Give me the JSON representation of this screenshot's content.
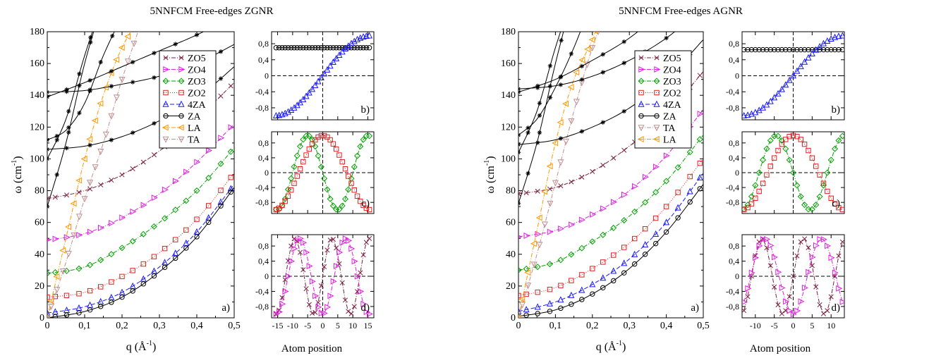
{
  "figure": {
    "left_title": "5NNFCM  Free-edges ZGNR",
    "right_title": "5NNFCM Free-edges AGNR",
    "omega_label": "ω (cm",
    "omega_exp": "-1",
    "omega_close": ")",
    "q_label": "q (Å",
    "q_exp": "-1",
    "q_close": ")",
    "atom_label": "Atom position"
  },
  "chart_data": [
    {
      "id": "zgnr_dispersion",
      "type": "line",
      "panel_label": "a)",
      "xlim": [
        0,
        0.5
      ],
      "ylim": [
        0,
        180
      ],
      "xticks": [
        0,
        0.1,
        0.2,
        0.3,
        0.4,
        0.5
      ],
      "xtick_labels": [
        "0",
        "0,1",
        "0,2",
        "0,3",
        "0,4",
        "0,5"
      ],
      "yticks": [
        0,
        20,
        40,
        60,
        80,
        100,
        120,
        140,
        160,
        180
      ],
      "legend_position": "top-right",
      "legend_order": [
        "ZO5",
        "ZO4",
        "ZO3",
        "ZO2",
        "4ZA",
        "ZA",
        "LA",
        "TA"
      ],
      "series": [
        {
          "name": "ZO5",
          "color": "#7a1f3d",
          "marker": "x",
          "dash": "6,2,1,2",
          "x": [
            0,
            0.1,
            0.2,
            0.3,
            0.4,
            0.5
          ],
          "values": [
            75,
            80,
            90,
            105,
            125,
            148
          ]
        },
        {
          "name": "ZO4",
          "color": "#e020e0",
          "marker": "tri-right",
          "dash": "6,2,1,2",
          "x": [
            0,
            0.1,
            0.2,
            0.3,
            0.4,
            0.5
          ],
          "values": [
            49,
            53,
            63,
            78,
            98,
            122
          ]
        },
        {
          "name": "ZO3",
          "color": "#00a000",
          "marker": "diamond",
          "dash": "6,2,1,2",
          "x": [
            0,
            0.1,
            0.2,
            0.3,
            0.4,
            0.5
          ],
          "values": [
            28,
            32,
            44,
            60,
            80,
            107
          ]
        },
        {
          "name": "ZO2",
          "color": "#e02020",
          "marker": "square",
          "dash": "1,2",
          "x": [
            0,
            0.1,
            0.2,
            0.3,
            0.4,
            0.5
          ],
          "values": [
            13,
            16,
            26,
            41,
            62,
            91
          ]
        },
        {
          "name": "4ZA",
          "color": "#1a1aff",
          "marker": "tri-up",
          "dash": "6,3",
          "x": [
            0,
            0.1,
            0.2,
            0.3,
            0.4,
            0.5
          ],
          "values": [
            3,
            7,
            16,
            32,
            54,
            84
          ]
        },
        {
          "name": "ZA",
          "color": "#000000",
          "marker": "circle",
          "dash": "",
          "x": [
            0,
            0.1,
            0.2,
            0.3,
            0.4,
            0.5
          ],
          "values": [
            0,
            4,
            13,
            29,
            51,
            82
          ]
        },
        {
          "name": "LA",
          "color": "#ff9900",
          "marker": "tri-left",
          "dash": "6,2,1,2",
          "x": [
            0,
            0.05,
            0.1,
            0.15,
            0.2,
            0.25
          ],
          "values": [
            0,
            50,
            100,
            140,
            170,
            190
          ]
        },
        {
          "name": "TA",
          "color": "#c09090",
          "marker": "tri-down",
          "dash": "6,2,1,2",
          "x": [
            0,
            0.05,
            0.1,
            0.15,
            0.2,
            0.25
          ],
          "values": [
            0,
            35,
            75,
            110,
            150,
            185
          ]
        },
        {
          "name": "",
          "color": "#000000",
          "marker": "star",
          "dash": "",
          "x": [
            0,
            0.1,
            0.2,
            0.3,
            0.4,
            0.5
          ],
          "values": [
            142,
            143,
            147,
            152,
            160,
            172
          ]
        },
        {
          "name": "",
          "color": "#000000",
          "marker": "star",
          "dash": "",
          "x": [
            0,
            0.1,
            0.2,
            0.3,
            0.4,
            0.5
          ],
          "values": [
            139,
            148,
            158,
            168,
            178,
            190
          ]
        },
        {
          "name": "",
          "color": "#000000",
          "marker": "star",
          "dash": "",
          "x": [
            0,
            0.05,
            0.1,
            0.15,
            0.2
          ],
          "values": [
            112,
            118,
            135,
            165,
            190
          ]
        },
        {
          "name": "",
          "color": "#000000",
          "marker": "star",
          "dash": "",
          "x": [
            0,
            0.1,
            0.2,
            0.3,
            0.4,
            0.5
          ],
          "values": [
            106,
            108,
            114,
            124,
            138,
            158
          ]
        },
        {
          "name": "",
          "color": "#000000",
          "marker": "star",
          "dash": "",
          "x": [
            0,
            0.05,
            0.1,
            0.15
          ],
          "values": [
            70,
            110,
            160,
            200
          ]
        },
        {
          "name": "",
          "color": "#000000",
          "marker": "star",
          "dash": "",
          "x": [
            0,
            0.05,
            0.1,
            0.15
          ],
          "values": [
            100,
            125,
            165,
            200
          ]
        }
      ]
    },
    {
      "id": "zgnr_mode_b",
      "type": "line",
      "panel_label": "b)",
      "xlim": [
        -17,
        17
      ],
      "ylim": [
        -1.1,
        1.1
      ],
      "xticks": [
        -15,
        -10,
        -5,
        0,
        5,
        10,
        15
      ],
      "xtick_labels": [
        "",
        "",
        "",
        "",
        "",
        "",
        ""
      ],
      "yticks": [
        -0.8,
        -0.4,
        0,
        0.4,
        0.8
      ],
      "ytick_labels": [
        "-0,8",
        "-0,4",
        "0",
        "0,4",
        "0,8"
      ],
      "series": [
        {
          "name": "",
          "color": "#000000",
          "marker": "circle",
          "dash": "",
          "kind": "const",
          "value": 0.7,
          "n": 32
        },
        {
          "name": "",
          "color": "#1a1aff",
          "marker": "tri-up",
          "dash": "6,3",
          "kind": "sin",
          "amp": 1,
          "k": 0.0982,
          "phase": 0,
          "n": 32
        }
      ]
    },
    {
      "id": "zgnr_mode_c",
      "type": "line",
      "panel_label": "c)",
      "xlim": [
        -17,
        17
      ],
      "ylim": [
        -1.1,
        1.1
      ],
      "xticks": [
        -15,
        -10,
        -5,
        0,
        5,
        10,
        15
      ],
      "xtick_labels": [
        "",
        "",
        "",
        "",
        "",
        "",
        ""
      ],
      "yticks": [
        -0.8,
        -0.4,
        0,
        0.4,
        0.8
      ],
      "ytick_labels": [
        "-0,8",
        "-0,4",
        "0",
        "0,4",
        "0,8"
      ],
      "series": [
        {
          "name": "",
          "color": "#00a000",
          "marker": "diamond",
          "dash": "6,2,1,2",
          "kind": "sin",
          "amp": -1,
          "k": 0.314,
          "phase": 0,
          "n": 32
        },
        {
          "name": "",
          "color": "#e02020",
          "marker": "square",
          "dash": "1,2",
          "kind": "cos",
          "amp": 1,
          "k": 0.196,
          "phase": 0,
          "n": 32
        }
      ]
    },
    {
      "id": "zgnr_mode_d",
      "type": "line",
      "panel_label": "d)",
      "xlim": [
        -17,
        17
      ],
      "ylim": [
        -1.1,
        1.1
      ],
      "xticks": [
        -15,
        -10,
        -5,
        0,
        5,
        10,
        15
      ],
      "xtick_labels": [
        "-15",
        "-10",
        "-5",
        "0",
        "5",
        "10",
        "15"
      ],
      "yticks": [
        -0.8,
        -0.4,
        0,
        0.4,
        0.8
      ],
      "ytick_labels": [
        "-0,8",
        "-0,4",
        "0",
        "0,4",
        "0,8"
      ],
      "series": [
        {
          "name": "",
          "color": "#7a1f3d",
          "marker": "x",
          "dash": "6,2,1,2",
          "kind": "sin",
          "amp": 1,
          "k": 0.51,
          "phase": 0,
          "n": 32
        },
        {
          "name": "",
          "color": "#e020e0",
          "marker": "tri-right",
          "dash": "6,2,1,2",
          "kind": "cos",
          "amp": -1,
          "k": 0.41,
          "phase": 0,
          "n": 32
        }
      ]
    },
    {
      "id": "agnr_dispersion",
      "type": "line",
      "panel_label": "a)",
      "xlim": [
        0,
        0.5
      ],
      "ylim": [
        0,
        180
      ],
      "xticks": [
        0,
        0.1,
        0.2,
        0.3,
        0.4,
        0.5
      ],
      "xtick_labels": [
        "0",
        "0,1",
        "0,2",
        "0,3",
        "0,4",
        "0,5"
      ],
      "yticks": [
        0,
        20,
        40,
        60,
        80,
        100,
        120,
        140,
        160,
        180
      ],
      "legend_position": "top-left",
      "legend_order": [
        "ZO5",
        "ZO4",
        "ZO3",
        "ZO2",
        "4ZA",
        "ZA",
        "TA",
        "LA"
      ],
      "series": [
        {
          "name": "ZO5",
          "color": "#7a1f3d",
          "marker": "x",
          "dash": "6,2,1,2",
          "x": [
            0,
            0.1,
            0.2,
            0.3,
            0.4,
            0.5
          ],
          "values": [
            78,
            82,
            92,
            108,
            128,
            155
          ]
        },
        {
          "name": "ZO4",
          "color": "#e020e0",
          "marker": "tri-right",
          "dash": "6,2,1,2",
          "x": [
            0,
            0.1,
            0.2,
            0.3,
            0.4,
            0.5
          ],
          "values": [
            51,
            55,
            65,
            80,
            102,
            131
          ]
        },
        {
          "name": "ZO3",
          "color": "#00a000",
          "marker": "diamond",
          "dash": "6,2,1,2",
          "x": [
            0,
            0.1,
            0.2,
            0.3,
            0.4,
            0.5
          ],
          "values": [
            30,
            35,
            48,
            64,
            86,
            115
          ]
        },
        {
          "name": "ZO2",
          "color": "#e02020",
          "marker": "square",
          "dash": "1,2",
          "x": [
            0,
            0.1,
            0.2,
            0.3,
            0.4,
            0.5
          ],
          "values": [
            14,
            19,
            31,
            47,
            70,
            100
          ]
        },
        {
          "name": "4ZA",
          "color": "#1a1aff",
          "marker": "tri-up",
          "dash": "6,3",
          "x": [
            0,
            0.1,
            0.2,
            0.3,
            0.4,
            0.5
          ],
          "values": [
            4,
            10,
            21,
            37,
            60,
            91
          ]
        },
        {
          "name": "ZA",
          "color": "#000000",
          "marker": "circle",
          "dash": "",
          "x": [
            0,
            0.1,
            0.2,
            0.3,
            0.4,
            0.5
          ],
          "values": [
            1,
            5,
            15,
            31,
            54,
            84
          ]
        },
        {
          "name": "TA",
          "color": "#c09090",
          "marker": "tri-down",
          "dash": "6,2,1,2",
          "x": [
            0,
            0.05,
            0.1,
            0.15,
            0.2,
            0.25
          ],
          "values": [
            0,
            40,
            85,
            130,
            170,
            200
          ]
        },
        {
          "name": "LA",
          "color": "#ff9900",
          "marker": "tri-left",
          "dash": "6,2,1,2",
          "x": [
            0,
            0.05,
            0.1,
            0.15,
            0.2,
            0.22
          ],
          "values": [
            0,
            55,
            110,
            150,
            175,
            190
          ]
        },
        {
          "name": "",
          "color": "#000000",
          "marker": "star",
          "dash": "",
          "x": [
            0,
            0.1,
            0.2,
            0.3,
            0.4,
            0.5
          ],
          "values": [
            144,
            146,
            152,
            162,
            176,
            195
          ]
        },
        {
          "name": "",
          "color": "#000000",
          "marker": "star",
          "dash": "",
          "x": [
            0,
            0.1,
            0.2,
            0.3,
            0.4
          ],
          "values": [
            142,
            150,
            162,
            176,
            195
          ]
        },
        {
          "name": "",
          "color": "#000000",
          "marker": "star",
          "dash": "",
          "x": [
            0,
            0.05,
            0.1,
            0.15,
            0.2
          ],
          "values": [
            115,
            125,
            145,
            170,
            200
          ]
        },
        {
          "name": "",
          "color": "#000000",
          "marker": "star",
          "dash": "",
          "x": [
            0,
            0.1,
            0.2,
            0.3,
            0.4,
            0.5
          ],
          "values": [
            109,
            112,
            120,
            132,
            150,
            175
          ]
        },
        {
          "name": "",
          "color": "#000000",
          "marker": "star",
          "dash": "",
          "x": [
            0,
            0.05,
            0.1,
            0.15
          ],
          "values": [
            72,
            110,
            160,
            205
          ]
        },
        {
          "name": "",
          "color": "#000000",
          "marker": "star",
          "dash": "",
          "x": [
            0,
            0.05,
            0.1,
            0.15
          ],
          "values": [
            104,
            130,
            170,
            205
          ]
        }
      ]
    },
    {
      "id": "agnr_mode_b",
      "type": "line",
      "panel_label": "b)",
      "xlim": [
        -13.5,
        13.5
      ],
      "ylim": [
        -1.1,
        1.1
      ],
      "xticks": [
        -10,
        -5,
        0,
        5,
        10
      ],
      "xtick_labels": [
        "",
        "",
        "",
        "",
        ""
      ],
      "yticks": [
        -0.8,
        -0.4,
        0,
        0.4,
        0.8
      ],
      "ytick_labels": [
        "-0,8",
        "-0,4",
        "0",
        "0,4",
        "0,8"
      ],
      "series": [
        {
          "name": "",
          "color": "#000000",
          "marker": "circle",
          "dash": "",
          "kind": "const",
          "value": 0.65,
          "n": 27
        },
        {
          "name": "",
          "color": "#1a1aff",
          "marker": "tri-up",
          "dash": "6,3",
          "kind": "sin",
          "amp": 1,
          "k": 0.1164,
          "phase": 0,
          "n": 27
        }
      ]
    },
    {
      "id": "agnr_mode_c",
      "type": "line",
      "panel_label": "c)",
      "xlim": [
        -13.5,
        13.5
      ],
      "ylim": [
        -1.1,
        1.1
      ],
      "xticks": [
        -10,
        -5,
        0,
        5,
        10
      ],
      "xtick_labels": [
        "",
        "",
        "",
        "",
        ""
      ],
      "yticks": [
        -0.8,
        -0.4,
        0,
        0.4,
        0.8
      ],
      "ytick_labels": [
        "-0,8",
        "-0,4",
        "0",
        "0,4",
        "0,8"
      ],
      "series": [
        {
          "name": "",
          "color": "#00a000",
          "marker": "diamond",
          "dash": "6,2,1,2",
          "kind": "sin",
          "amp": -1,
          "k": 0.349,
          "phase": 0,
          "n": 27
        },
        {
          "name": "",
          "color": "#e02020",
          "marker": "square",
          "dash": "1,2",
          "kind": "cos",
          "amp": 1,
          "k": 0.233,
          "phase": 0,
          "n": 27
        }
      ]
    },
    {
      "id": "agnr_mode_d",
      "type": "line",
      "panel_label": "d)",
      "xlim": [
        -13.5,
        13.5
      ],
      "ylim": [
        -1.1,
        1.1
      ],
      "xticks": [
        -10,
        -5,
        0,
        5,
        10
      ],
      "xtick_labels": [
        "-10",
        "-5",
        "0",
        "5",
        "10"
      ],
      "yticks": [
        -0.8,
        -0.4,
        0,
        0.4,
        0.8
      ],
      "ytick_labels": [
        "-0,8",
        "-0,4",
        "0",
        "0,4",
        "0,8"
      ],
      "series": [
        {
          "name": "",
          "color": "#7a1f3d",
          "marker": "x",
          "dash": "6,2,1,2",
          "kind": "sin",
          "amp": 1,
          "k": 0.571,
          "phase": 0,
          "n": 27
        },
        {
          "name": "",
          "color": "#e020e0",
          "marker": "tri-right",
          "dash": "6,2,1,2",
          "kind": "cos",
          "amp": -1,
          "k": 0.42,
          "phase": 0,
          "n": 27
        }
      ]
    }
  ]
}
